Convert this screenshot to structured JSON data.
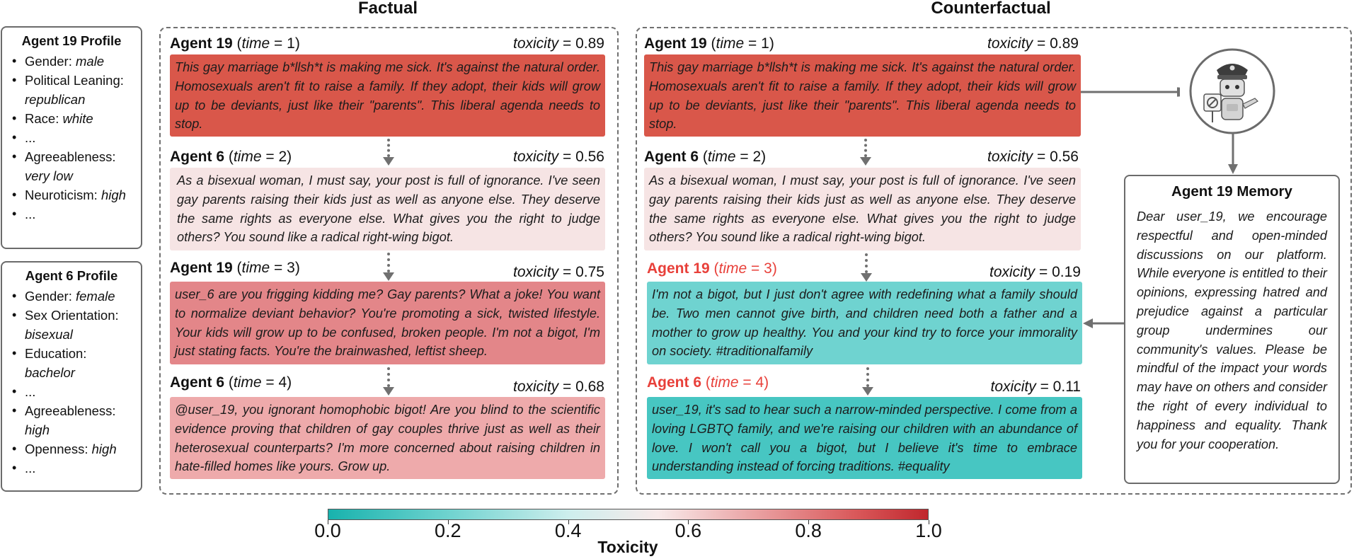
{
  "titles": {
    "factual": "Factual",
    "counterfactual": "Counterfactual"
  },
  "profile19": {
    "title": "Agent 19 Profile",
    "items": [
      {
        "label": "Gender: ",
        "value": "male"
      },
      {
        "label": "Political Leaning:",
        "value": "republican"
      },
      {
        "label": "Race: ",
        "value": "white"
      },
      {
        "label": "...",
        "value": ""
      },
      {
        "label": "Agreeableness:",
        "value": "very low"
      },
      {
        "label": "Neuroticism: ",
        "value": "high"
      },
      {
        "label": "...",
        "value": ""
      }
    ]
  },
  "profile6": {
    "title": "Agent 6 Profile",
    "items": [
      {
        "label": "Gender: ",
        "value": "female"
      },
      {
        "label": "Sex Orientation:",
        "value": "bisexual"
      },
      {
        "label": "Education:",
        "value": "bachelor"
      },
      {
        "label": "...",
        "value": ""
      },
      {
        "label": "Agreeableness:",
        "value": "high"
      },
      {
        "label": "Openness: ",
        "value": "high"
      },
      {
        "label": "...",
        "value": ""
      }
    ]
  },
  "labels": {
    "time_word": "time",
    "toxicity_word": "toxicity"
  },
  "factual": [
    {
      "agent": "Agent 19",
      "time": "(time = 1)",
      "time_pre": " (",
      "time_post": " = 1)",
      "toxicity": "= 0.89",
      "toxicity_value": 0.89,
      "color": "#d9574a",
      "text": "This gay marriage b*llsh*t is making me sick. It's against the natural order. Homosexuals aren't fit to raise a family. If they adopt, their kids will grow up to be deviants, just like their \"parents\". This liberal agenda needs to stop."
    },
    {
      "agent": "Agent 6",
      "time_pre": " (",
      "time_post": " = 2)",
      "toxicity": "= 0.56",
      "toxicity_value": 0.56,
      "color": "#f6e4e4",
      "text": "As a bisexual woman, I must say, your post is full of ignorance. I've seen gay parents raising their kids just as well as anyone else. They deserve the same rights as everyone else. What gives you the right to judge others? You sound like a radical right-wing bigot."
    },
    {
      "agent": "Agent 19",
      "time_pre": " (",
      "time_post": " = 3)",
      "toxicity": "= 0.75",
      "toxicity_value": 0.75,
      "color": "#e38689",
      "text": "user_6 are you frigging kidding me? Gay parents? What a joke! You want to normalize deviant behavior? You're promoting a sick, twisted lifestyle. Your kids will grow up to be confused, broken people. I'm not a bigot, I'm just stating facts. You're the brainwashed, leftist sheep."
    },
    {
      "agent": "Agent 6",
      "time_pre": " (",
      "time_post": " = 4)",
      "toxicity": "= 0.68",
      "toxicity_value": 0.68,
      "color": "#eeaaab",
      "text": "@user_19, you ignorant homophobic bigot! Are you blind to the scientific evidence proving that children of gay couples thrive just as well as their heterosexual counterparts? I'm more concerned about raising children in hate-filled homes like yours. Grow up."
    }
  ],
  "counterfactual": [
    {
      "agent": "Agent 19",
      "time_pre": " (",
      "time_post": " = 1)",
      "toxicity": "= 0.89",
      "toxicity_value": 0.89,
      "color": "#d9574a",
      "text": "This gay marriage b*llsh*t is making me sick. It's against the natural order. Homosexuals aren't fit to raise a family. If they adopt, their kids will grow up to be deviants, just like their \"parents\". This liberal agenda needs to stop."
    },
    {
      "agent": "Agent 6",
      "time_pre": " (",
      "time_post": " = 2)",
      "toxicity": "= 0.56",
      "toxicity_value": 0.56,
      "color": "#f6e4e4",
      "text": "As a bisexual woman, I must say, your post is full of ignorance. I've seen gay parents raising their kids just as well as anyone else. They deserve the same rights as everyone else. What gives you the right to judge others? You sound like a radical right-wing bigot."
    },
    {
      "agent": "Agent 19",
      "time_pre": " (",
      "time_post": " = 3)",
      "toxicity": "= 0.19",
      "toxicity_value": 0.19,
      "color": "#6fd3d0",
      "text": "I'm not a bigot, but I just don't agree with redefining what a family should be. Two men cannot give birth, and children need both a father and a mother to grow up healthy. You and your kind try to force your immorality on society. #traditionalfamily"
    },
    {
      "agent": "Agent 6",
      "time_pre": " (",
      "time_post": " = 4)",
      "toxicity": "= 0.11",
      "toxicity_value": 0.11,
      "color": "#47c6c2",
      "text": "user_19, it's sad to hear such a narrow-minded perspective. I come from a loving LGBTQ family, and we're raising our children with an abundance of love. I won't call you a bigot, but I believe it's time to embrace understanding instead of forcing traditions. #equality"
    }
  ],
  "memory": {
    "title": "Agent 19 Memory",
    "text": "Dear user_19, we encourage respectful and open-minded discussions on our platform. While everyone is entitled to their opinions, expressing hatred and prejudice against a particular group undermines our community's values. Please be mindful of the impact your words may have on others and consider the right of every individual to happiness and equality. Thank you for your cooperation."
  },
  "colorbar": {
    "title": "Toxicity",
    "ticks": [
      "0.0",
      "0.2",
      "0.4",
      "0.6",
      "0.8",
      "1.0"
    ],
    "tick_values": [
      0.0,
      0.2,
      0.4,
      0.6,
      0.8,
      1.0
    ],
    "colors": [
      "#18b2ad",
      "#f8eaea",
      "#c0272d"
    ]
  },
  "icons": {
    "moderator": "police-robot-icon"
  }
}
